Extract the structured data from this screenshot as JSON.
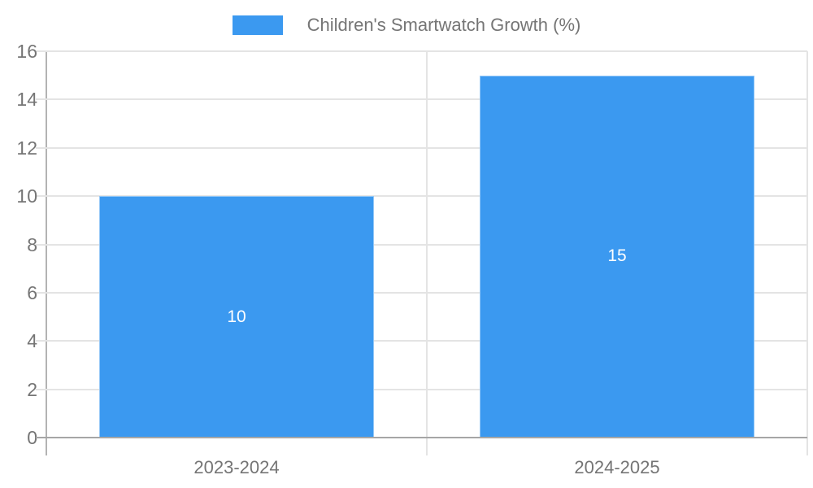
{
  "chart_data": {
    "type": "bar",
    "title": "",
    "legend": "Children's Smartwatch Growth (%)",
    "legend_position": "top-center",
    "categories": [
      "2023-2024",
      "2024-2025"
    ],
    "values": [
      10,
      15
    ],
    "value_labels": [
      "10",
      "15"
    ],
    "xlabel": "",
    "ylabel": "",
    "ylim": [
      0,
      16
    ],
    "yticks": [
      0,
      2,
      4,
      6,
      8,
      10,
      12,
      14,
      16
    ],
    "grid": true,
    "colors": {
      "bar": "#3b99f0",
      "grid": "#e4e4e4",
      "baseline": "#a6a6a6",
      "axis_line": "#b3b3b3",
      "axis_label": "#757575",
      "legend_label": "#757575",
      "value_label": "#ffffff",
      "background": "#ffffff"
    }
  }
}
